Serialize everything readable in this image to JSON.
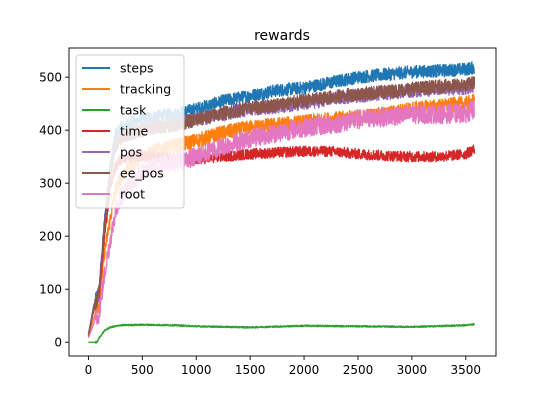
{
  "chart_data": {
    "type": "line",
    "title": "rewards",
    "xlabel": "",
    "ylabel": "",
    "xlim": [
      -180,
      3780
    ],
    "ylim": [
      -26,
      555
    ],
    "grid": false,
    "legend_position": "top-left",
    "x_ticks": [
      0,
      500,
      1000,
      1500,
      2000,
      2500,
      3000,
      3500
    ],
    "y_ticks": [
      0,
      100,
      200,
      300,
      400,
      500
    ],
    "series": [
      {
        "name": "steps",
        "color": "#1f77b4",
        "noise": 12,
        "x": [
          0,
          50,
          100,
          150,
          200,
          250,
          300,
          400,
          500,
          600,
          800,
          1000,
          1250,
          1500,
          1750,
          2000,
          2250,
          2500,
          2750,
          3000,
          3250,
          3500,
          3580
        ],
        "y": [
          15,
          70,
          100,
          230,
          330,
          390,
          405,
          415,
          420,
          425,
          430,
          440,
          455,
          465,
          475,
          480,
          490,
          500,
          505,
          510,
          512,
          515,
          518
        ]
      },
      {
        "name": "tracking",
        "color": "#ff7f0e",
        "noise": 14,
        "x": [
          0,
          50,
          100,
          150,
          200,
          250,
          300,
          400,
          500,
          600,
          800,
          1000,
          1250,
          1500,
          1750,
          2000,
          2250,
          2500,
          2750,
          3000,
          3250,
          3500,
          3580
        ],
        "y": [
          10,
          45,
          75,
          170,
          230,
          285,
          310,
          335,
          350,
          360,
          370,
          380,
          395,
          405,
          410,
          415,
          420,
          425,
          430,
          440,
          445,
          450,
          455
        ]
      },
      {
        "name": "task",
        "color": "#2ca02c",
        "noise": 1.5,
        "x": [
          0,
          80,
          100,
          150,
          200,
          300,
          500,
          800,
          1000,
          1500,
          2000,
          2500,
          3000,
          3500,
          3580
        ],
        "y": [
          0,
          0,
          8,
          22,
          28,
          32,
          33,
          32,
          30,
          28,
          31,
          30,
          29,
          32,
          34
        ]
      },
      {
        "name": "time",
        "color": "#d62728",
        "noise": 10,
        "x": [
          0,
          50,
          100,
          150,
          200,
          250,
          300,
          400,
          500,
          600,
          800,
          1000,
          1250,
          1500,
          1750,
          2000,
          2250,
          2500,
          2750,
          3000,
          3250,
          3500,
          3580
        ],
        "y": [
          12,
          60,
          90,
          200,
          290,
          330,
          345,
          350,
          352,
          350,
          345,
          345,
          350,
          355,
          358,
          360,
          360,
          355,
          352,
          350,
          350,
          355,
          365
        ]
      },
      {
        "name": "pos",
        "color": "#9467bd",
        "noise": 13,
        "x": [
          0,
          50,
          100,
          150,
          200,
          250,
          300,
          400,
          500,
          600,
          800,
          1000,
          1250,
          1500,
          1750,
          2000,
          2250,
          2500,
          2750,
          3000,
          3250,
          3500,
          3580
        ],
        "y": [
          14,
          65,
          95,
          220,
          310,
          370,
          385,
          395,
          400,
          405,
          410,
          420,
          430,
          440,
          445,
          450,
          460,
          465,
          470,
          475,
          478,
          480,
          485
        ]
      },
      {
        "name": "ee_pos",
        "color": "#8c564b",
        "noise": 13,
        "x": [
          0,
          50,
          100,
          150,
          200,
          250,
          300,
          400,
          500,
          600,
          800,
          1000,
          1250,
          1500,
          1750,
          2000,
          2250,
          2500,
          2750,
          3000,
          3250,
          3500,
          3580
        ],
        "y": [
          14,
          65,
          95,
          220,
          310,
          370,
          385,
          395,
          400,
          405,
          410,
          420,
          432,
          442,
          448,
          455,
          462,
          468,
          472,
          478,
          482,
          485,
          490
        ]
      },
      {
        "name": "root",
        "color": "#e377c2",
        "noise": 18,
        "x": [
          0,
          50,
          100,
          150,
          200,
          250,
          300,
          400,
          500,
          600,
          800,
          1000,
          1250,
          1500,
          1750,
          2000,
          2250,
          2500,
          2750,
          3000,
          3250,
          3500,
          3580
        ],
        "y": [
          8,
          35,
          55,
          130,
          190,
          245,
          275,
          300,
          320,
          330,
          340,
          350,
          370,
          385,
          395,
          405,
          410,
          420,
          425,
          430,
          430,
          432,
          440
        ]
      }
    ]
  }
}
